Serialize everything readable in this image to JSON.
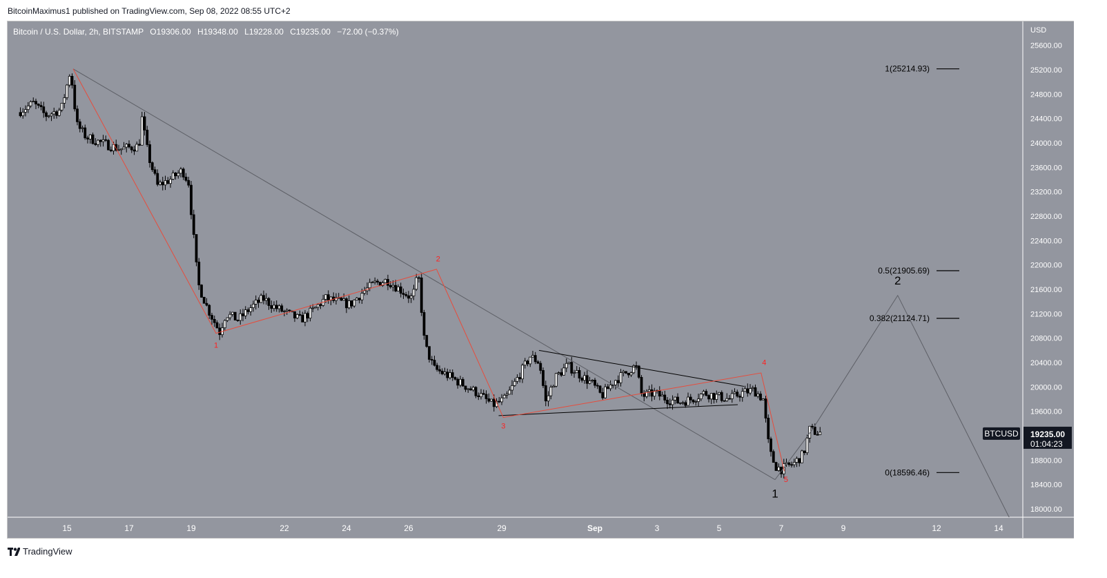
{
  "header": {
    "published_by": "BitcoinMaximus1 published on TradingView.com, Sep 08, 2022 08:55 UTC+2"
  },
  "symbol_info": {
    "name": "Bitcoin / U.S. Dollar, 2h, BITSTAMP",
    "o_label": "O",
    "o_value": "19306.00",
    "h_label": "H",
    "h_value": "19348.00",
    "l_label": "L",
    "l_value": "19228.00",
    "c_label": "C",
    "c_value": "19235.00",
    "change": "−72.00 (−0.37%)"
  },
  "price_tag": {
    "symbol": "BTCUSD",
    "price": "19235.00",
    "countdown": "01:04:23"
  },
  "footer": {
    "brand": "TradingView"
  },
  "colors": {
    "chart_bg": "#93969f",
    "candle": "#000000",
    "text_light": "#ffffff",
    "wave_red": "#e74c3c",
    "wave_label_red": "#ff1f1f",
    "trend_gray": "#5d5f66"
  },
  "chart_data": {
    "type": "candlestick",
    "currency_label": "USD",
    "ylim": [
      17800,
      25900
    ],
    "y_ticks": [
      25600,
      25200,
      24800,
      24400,
      24000,
      23600,
      23200,
      22800,
      22400,
      22000,
      21600,
      21200,
      20800,
      20400,
      20000,
      19600,
      19200,
      18800,
      18400,
      18000
    ],
    "y_tick_labels": [
      "25600.00",
      "25200.00",
      "24800.00",
      "24400.00",
      "24000.00",
      "23600.00",
      "23200.00",
      "22800.00",
      "22400.00",
      "22000.00",
      "21600.00",
      "21200.00",
      "20800.00",
      "20400.00",
      "20000.00",
      "19600.00",
      "19200.00",
      "18800.00",
      "18400.00",
      "18000.00"
    ],
    "xlim_days": [
      13.5,
      46.2
    ],
    "x_ticks": [
      {
        "day": 15,
        "label": "15"
      },
      {
        "day": 17,
        "label": "17"
      },
      {
        "day": 19,
        "label": "19"
      },
      {
        "day": 22,
        "label": "22"
      },
      {
        "day": 24,
        "label": "24"
      },
      {
        "day": 26,
        "label": "26"
      },
      {
        "day": 29,
        "label": "29"
      },
      {
        "day": 32,
        "label": "Sep",
        "bold": true
      },
      {
        "day": 34,
        "label": "3"
      },
      {
        "day": 36,
        "label": "5"
      },
      {
        "day": 38,
        "label": "7"
      },
      {
        "day": 40,
        "label": "9"
      },
      {
        "day": 43,
        "label": "12"
      },
      {
        "day": 45,
        "label": "14"
      }
    ],
    "price_path": [
      [
        13.5,
        24500
      ],
      [
        14.0,
        24650
      ],
      [
        14.4,
        24450
      ],
      [
        14.9,
        24550
      ],
      [
        15.2,
        25200
      ],
      [
        15.4,
        24300
      ],
      [
        15.7,
        24100
      ],
      [
        16.2,
        24000
      ],
      [
        16.8,
        23900
      ],
      [
        17.4,
        23950
      ],
      [
        17.5,
        24400
      ],
      [
        17.7,
        23800
      ],
      [
        18.0,
        23300
      ],
      [
        18.4,
        23400
      ],
      [
        18.8,
        23550
      ],
      [
        19.0,
        23350
      ],
      [
        19.1,
        22800
      ],
      [
        19.3,
        21700
      ],
      [
        19.6,
        21300
      ],
      [
        20.0,
        20900
      ],
      [
        20.2,
        21200
      ],
      [
        20.6,
        21100
      ],
      [
        21.0,
        21300
      ],
      [
        21.4,
        21450
      ],
      [
        21.8,
        21300
      ],
      [
        22.2,
        21200
      ],
      [
        22.6,
        21100
      ],
      [
        23.0,
        21250
      ],
      [
        23.4,
        21450
      ],
      [
        23.8,
        21400
      ],
      [
        24.2,
        21350
      ],
      [
        24.6,
        21550
      ],
      [
        25.0,
        21700
      ],
      [
        25.4,
        21750
      ],
      [
        25.8,
        21600
      ],
      [
        26.2,
        21450
      ],
      [
        26.4,
        21850
      ],
      [
        26.6,
        20700
      ],
      [
        26.9,
        20300
      ],
      [
        27.3,
        20200
      ],
      [
        27.8,
        20050
      ],
      [
        28.3,
        19900
      ],
      [
        28.8,
        19700
      ],
      [
        29.2,
        19800
      ],
      [
        29.6,
        20150
      ],
      [
        30.0,
        20500
      ],
      [
        30.3,
        20400
      ],
      [
        30.5,
        19750
      ],
      [
        30.8,
        20150
      ],
      [
        31.2,
        20350
      ],
      [
        31.6,
        20200
      ],
      [
        32.0,
        20050
      ],
      [
        32.3,
        19850
      ],
      [
        32.7,
        20100
      ],
      [
        33.0,
        20200
      ],
      [
        33.4,
        20350
      ],
      [
        33.6,
        19850
      ],
      [
        34.0,
        19900
      ],
      [
        34.4,
        19800
      ],
      [
        34.8,
        19750
      ],
      [
        35.2,
        19800
      ],
      [
        35.6,
        19900
      ],
      [
        36.0,
        19850
      ],
      [
        36.4,
        19800
      ],
      [
        36.8,
        19900
      ],
      [
        37.2,
        19950
      ],
      [
        37.5,
        19800
      ],
      [
        37.7,
        18950
      ],
      [
        37.9,
        18700
      ],
      [
        38.1,
        18650
      ],
      [
        38.5,
        18750
      ],
      [
        38.8,
        18900
      ],
      [
        39.0,
        19300
      ],
      [
        39.25,
        19250
      ]
    ],
    "wave_path_red": [
      [
        15.2,
        25214
      ],
      [
        19.8,
        20880
      ],
      [
        26.9,
        21930
      ],
      [
        29.05,
        19500
      ],
      [
        37.35,
        20230
      ],
      [
        38.1,
        18620
      ]
    ],
    "wave_labels_red": [
      {
        "day": 19.8,
        "price": 20800,
        "label": "1",
        "pos": "below"
      },
      {
        "day": 26.95,
        "price": 21980,
        "label": "2",
        "pos": "above"
      },
      {
        "day": 29.05,
        "price": 19480,
        "label": "3",
        "pos": "below"
      },
      {
        "day": 37.45,
        "price": 20280,
        "label": "4",
        "pos": "above"
      },
      {
        "day": 38.15,
        "price": 18600,
        "label": "5",
        "pos": "below"
      }
    ],
    "trend_line_gray": [
      [
        15.2,
        25214
      ],
      [
        37.8,
        18480
      ]
    ],
    "projection_path": [
      [
        37.8,
        18480
      ],
      [
        39.0,
        19300
      ],
      [
        41.75,
        21500
      ],
      [
        45.4,
        17800
      ]
    ],
    "projection_labels": [
      {
        "day": 37.8,
        "price": 18480,
        "label": "1",
        "pos": "below"
      },
      {
        "day": 41.75,
        "price": 21500,
        "label": "2",
        "pos": "above"
      }
    ],
    "triangle_upper": [
      [
        30.2,
        20600
      ],
      [
        36.8,
        20010
      ]
    ],
    "triangle_lower": [
      [
        28.9,
        19530
      ],
      [
        36.6,
        19710
      ]
    ],
    "fib_levels": [
      {
        "label": "1(25214.93)",
        "price": 25214.93
      },
      {
        "label": "0.5(21905.69)",
        "price": 21905.69
      },
      {
        "label": "0.382(21124.71)",
        "price": 21124.71
      },
      {
        "label": "0(18596.46)",
        "price": 18596.46
      }
    ],
    "last_price": 19235
  }
}
